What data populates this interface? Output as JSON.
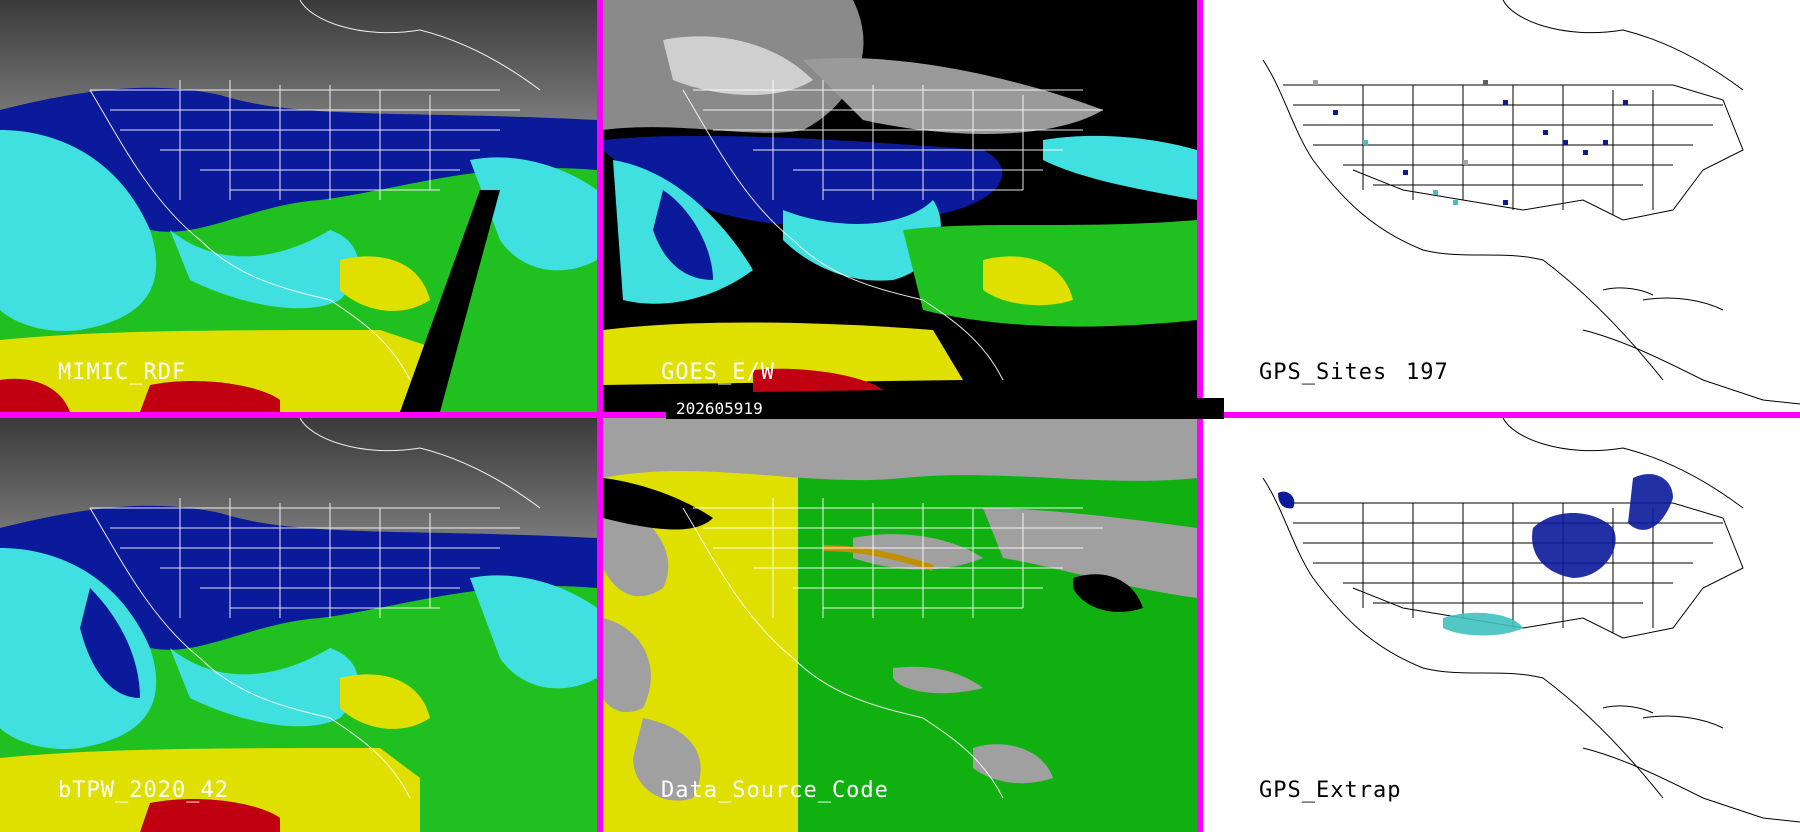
{
  "panels": {
    "top_left": {
      "label": "MIMIC_RDF"
    },
    "top_middle": {
      "label": "GOES_E/W"
    },
    "top_right": {
      "label": "GPS_Sites",
      "count": "197"
    },
    "bottom_left": {
      "label": "bTPW_2020_42"
    },
    "bottom_middle": {
      "label": "Data_Source_Code"
    },
    "bottom_right": {
      "label": "GPS_Extrap"
    }
  },
  "timestamp": "202605919",
  "colors": {
    "divider": "#ff00ff",
    "dry_gray": "#7a7a7a",
    "navy": "#0a1a9a",
    "cyan": "#40e0e0",
    "green": "#20c020",
    "yellow": "#e0e000",
    "red": "#c00010",
    "source_yellow": "#e0e000",
    "source_green": "#10b010",
    "source_gray": "#a0a0a0"
  }
}
